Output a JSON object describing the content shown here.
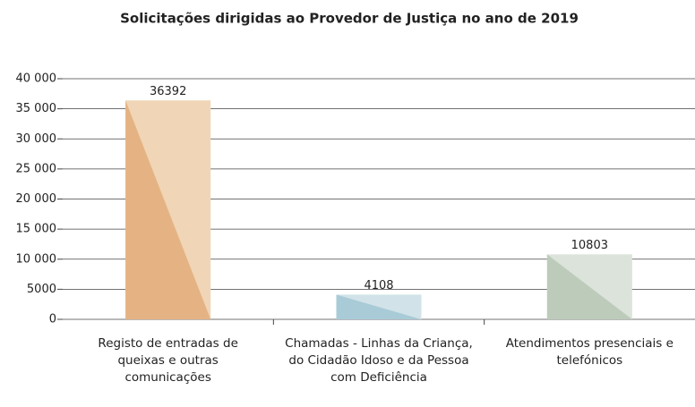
{
  "chart_data": {
    "type": "bar",
    "title": "Solicitações dirigidas ao Provedor de Justiça no ano de 2019",
    "categories": [
      "Registo de entradas de queixas e outras comunicações",
      "Chamadas - Linhas da Criança, do Cidadão Idoso e da Pessoa com Deficiência",
      "Atendimentos presenciais e telefónicos"
    ],
    "values": [
      36392,
      4108,
      10803
    ],
    "colors": [
      "#e5b383",
      "#a9cbd7",
      "#bdcbbb"
    ],
    "light_colors": [
      "#f0d5b7",
      "#d1e3e8",
      "#dbe3da"
    ],
    "ylim": [
      0,
      40000
    ],
    "yticks": [
      0,
      5000,
      {
        "value": 10000,
        "label": "10 000"
      },
      {
        "value": 15000,
        "label": "15 000"
      },
      {
        "value": 20000,
        "label": "20 000"
      },
      {
        "value": 25000,
        "label": "25 000"
      },
      {
        "value": 30000,
        "label": "30 000"
      },
      {
        "value": 35000,
        "label": "35 000"
      },
      {
        "value": 40000,
        "label": "40 000"
      }
    ],
    "grid": true
  }
}
